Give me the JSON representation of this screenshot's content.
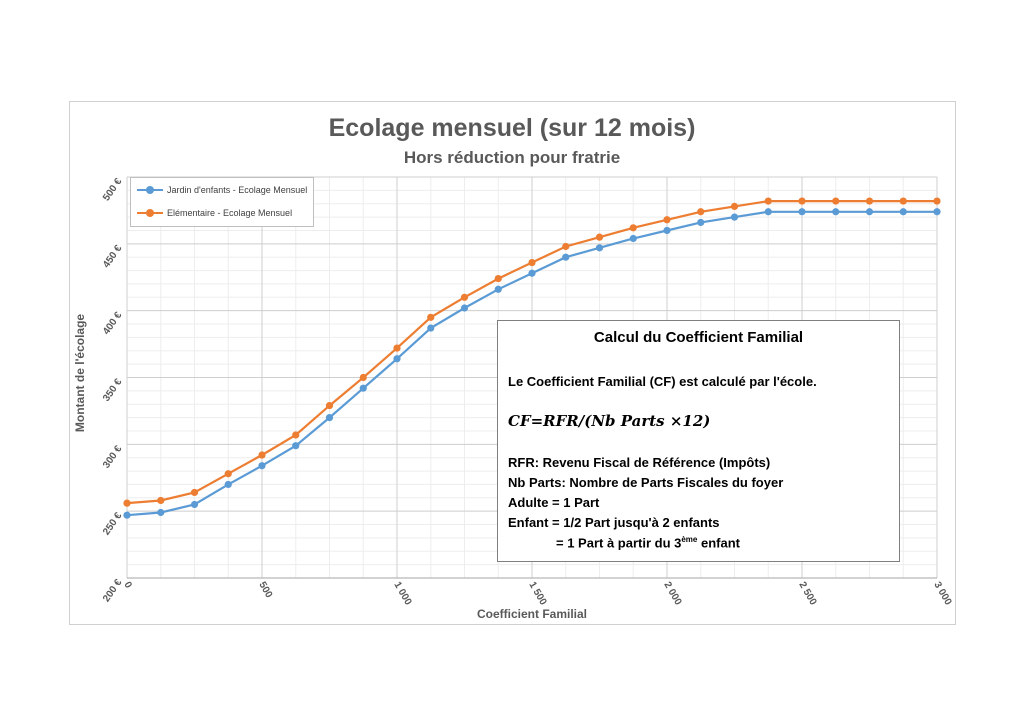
{
  "chart_data": {
    "type": "line",
    "title": "Ecolage mensuel (sur 12 mois)",
    "subtitle": "Hors réduction pour fratrie",
    "xlabel": "Coefficient Familial",
    "ylabel": "Montant de l'écolage",
    "xlim": [
      0,
      3000
    ],
    "ylim": [
      200,
      500
    ],
    "x_ticks": [
      0,
      500,
      1000,
      1500,
      2000,
      2500,
      3000
    ],
    "x_tick_labels": [
      "0",
      "500",
      "1 000",
      "1 500",
      "2 000",
      "2 500",
      "3 000"
    ],
    "y_ticks": [
      200,
      250,
      300,
      350,
      400,
      450,
      500
    ],
    "y_tick_labels": [
      "200 €",
      "250 €",
      "300 €",
      "350 €",
      "400 €",
      "450 €",
      "500 €"
    ],
    "grid": true,
    "legend_position": "top-left",
    "x": [
      0,
      125,
      250,
      375,
      500,
      625,
      750,
      875,
      1000,
      1125,
      1250,
      1375,
      1500,
      1625,
      1750,
      1875,
      2000,
      2125,
      2250,
      2375,
      2500,
      2625,
      2750,
      2875,
      3000
    ],
    "series": [
      {
        "name": "Jardin d'enfants - Ecolage Mensuel",
        "color": "#5B9BD5",
        "values": [
          247,
          249,
          255,
          270,
          284,
          299,
          320,
          342,
          364,
          387,
          402,
          416,
          428,
          440,
          447,
          454,
          460,
          466,
          470,
          474,
          474,
          474,
          474,
          474,
          474
        ]
      },
      {
        "name": "Elémentaire - Ecolage Mensuel",
        "color": "#ED7D31",
        "values": [
          256,
          258,
          264,
          278,
          292,
          307,
          329,
          350,
          372,
          395,
          410,
          424,
          436,
          448,
          455,
          462,
          468,
          474,
          478,
          482,
          482,
          482,
          482,
          482,
          482
        ]
      }
    ]
  },
  "infobox": {
    "title": "Calcul du Coefficient Familial",
    "intro": "Le Coefficient Familial (CF) est calculé par l'école.",
    "formula": "CF=RFR/(Nb Parts ×12)",
    "line1": "RFR: Revenu Fiscal de Référence (Impôts)",
    "line2": "Nb Parts: Nombre de Parts Fiscales du foyer",
    "line3": "Adulte = 1 Part",
    "line4": "Enfant = 1/2 Part jusqu'à 2 enfants",
    "line5_a": "= 1 Part à partir du 3",
    "line5_sup": "ème",
    "line5_b": " enfant"
  }
}
